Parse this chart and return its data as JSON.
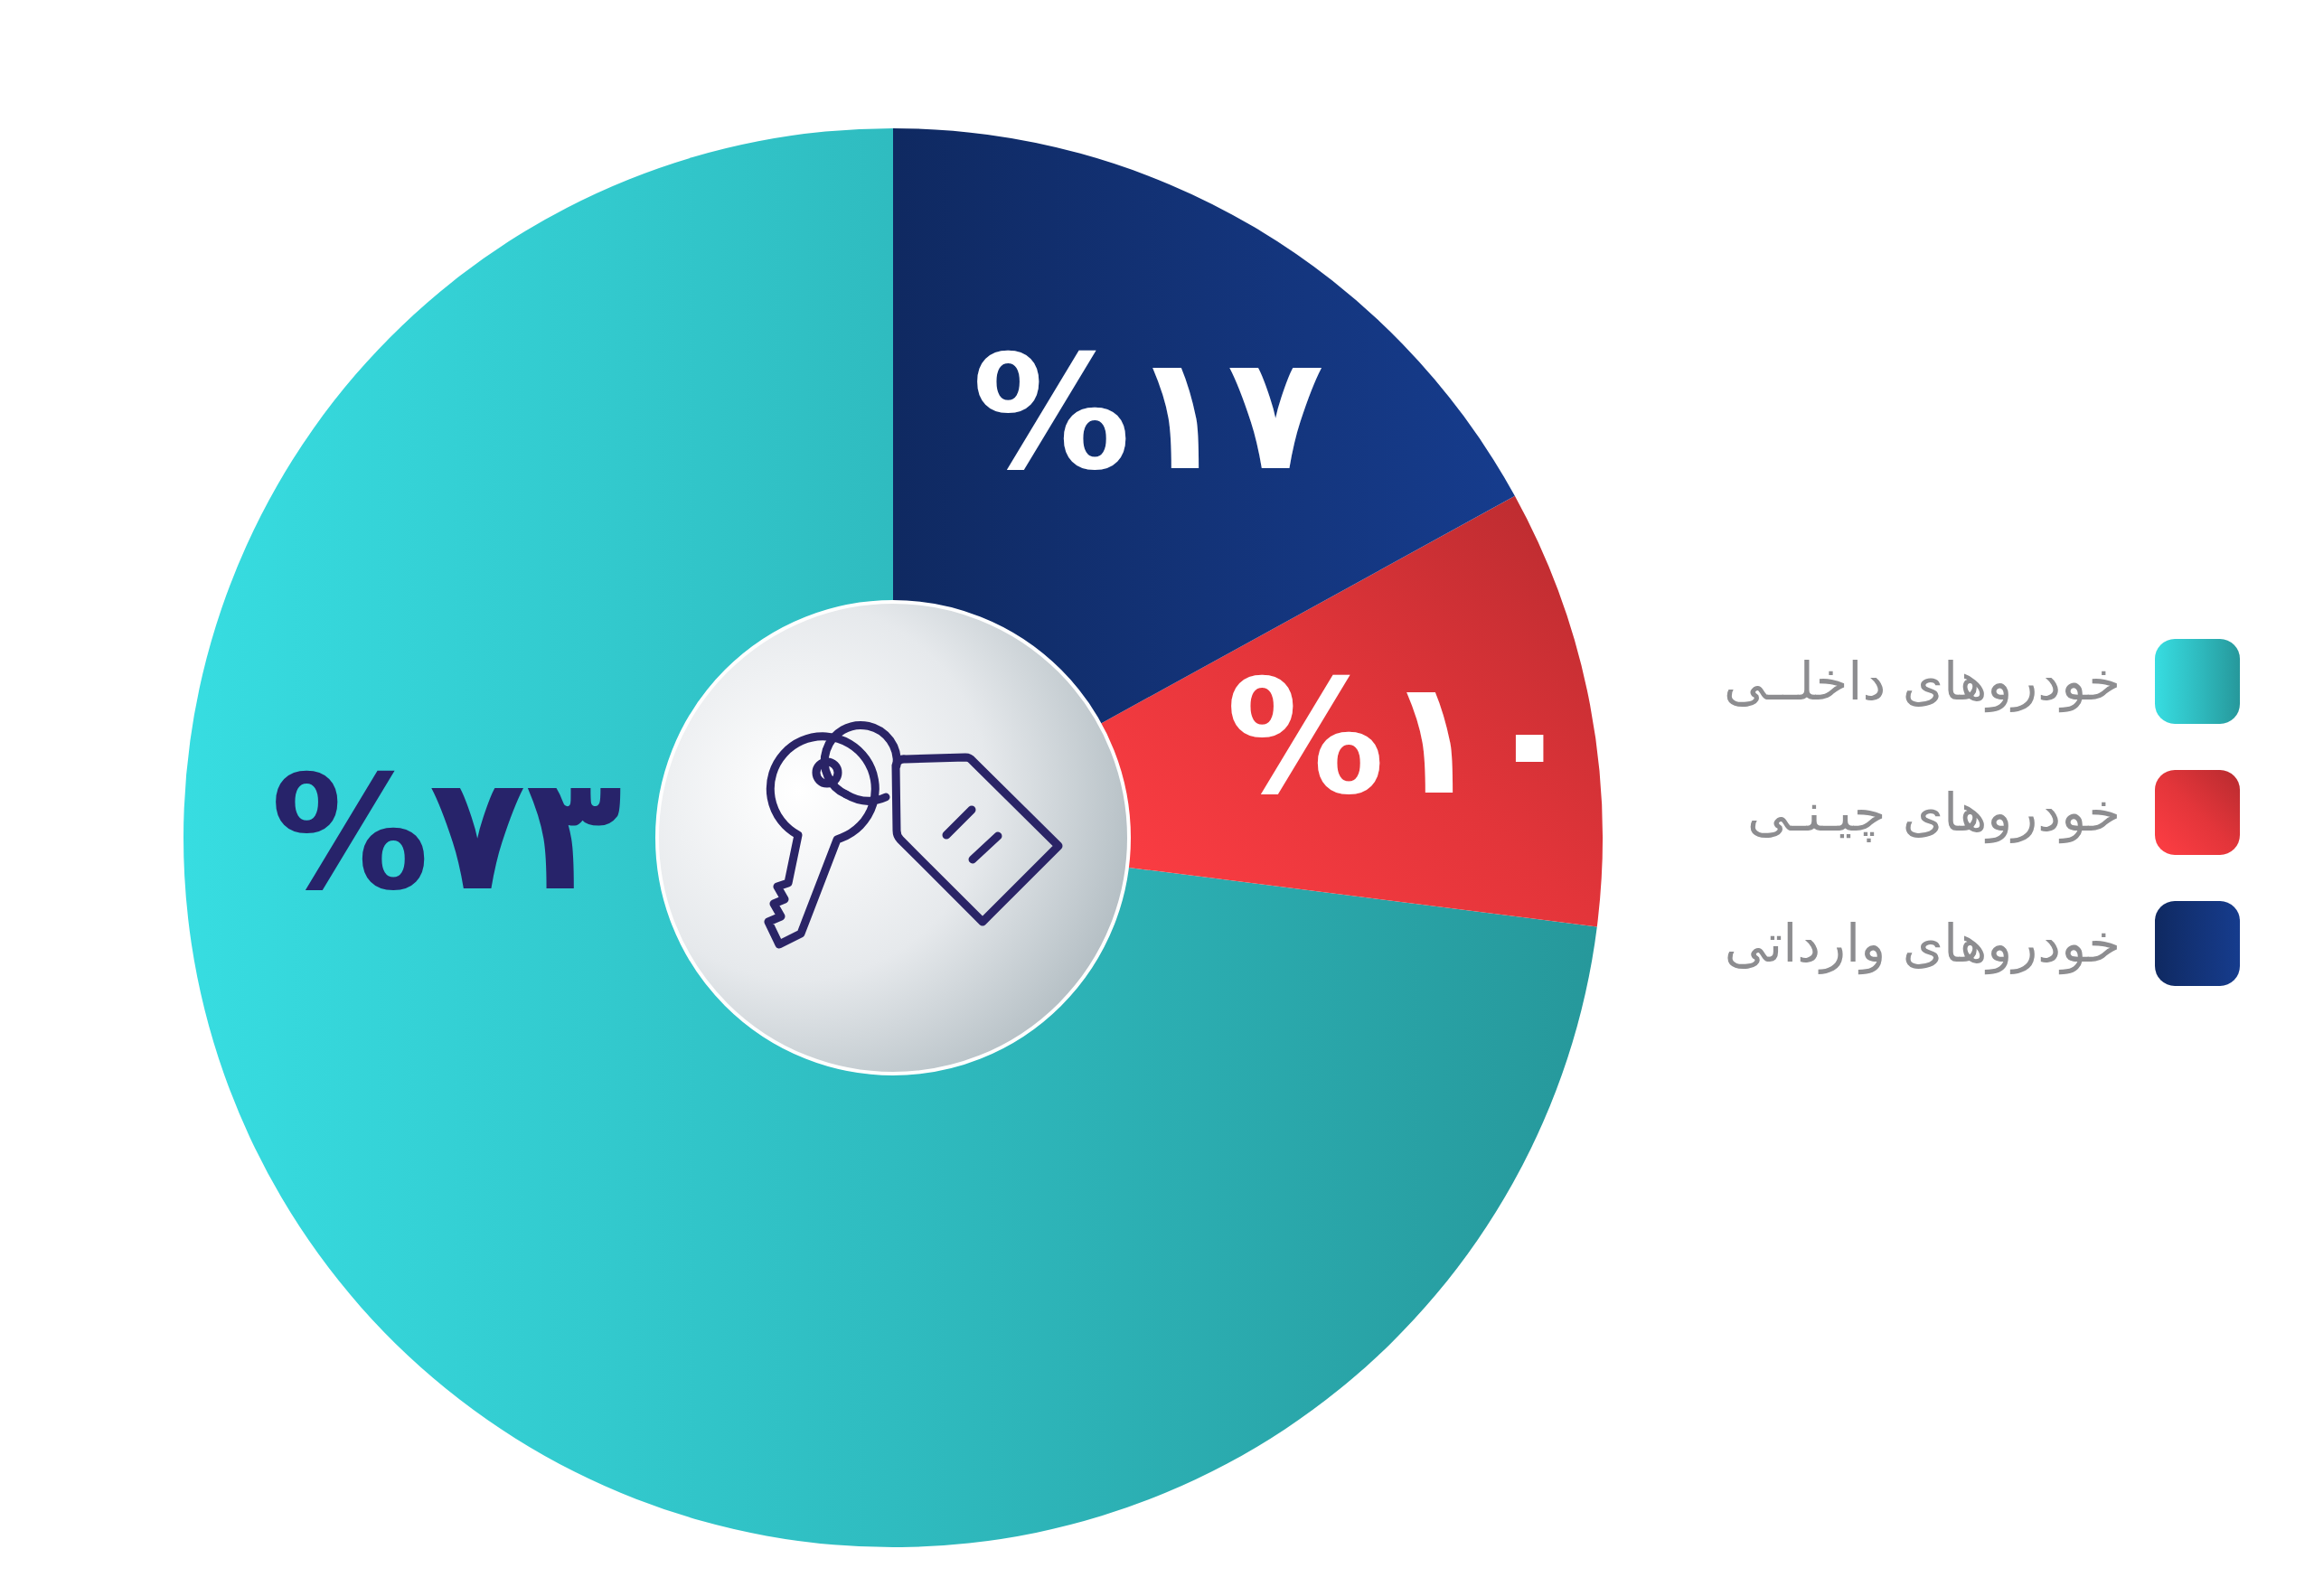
{
  "chart_data": {
    "type": "donut",
    "categories": [
      "خودروهای داخلــی",
      "خودروهای چیـنـی",
      "خودروهای وارداتی"
    ],
    "values": [
      73,
      10,
      17
    ],
    "colors": [
      "#2fbcc0",
      "#e3353a",
      "#133378"
    ],
    "value_labels": [
      "%۷۳",
      "%۱۰",
      "%۱۷"
    ],
    "legend": "right"
  }
}
